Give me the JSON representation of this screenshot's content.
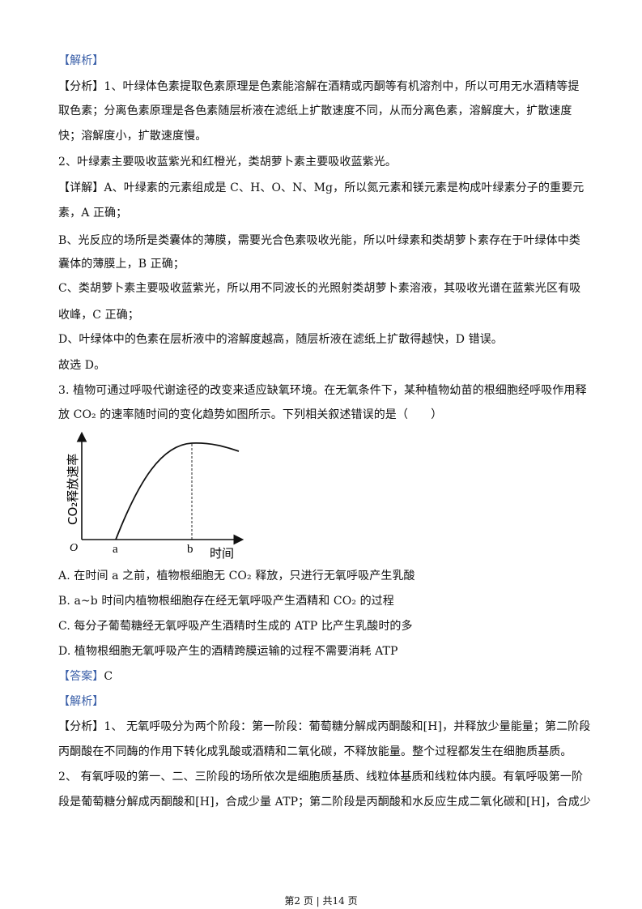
{
  "section1": {
    "jiexi_tag": "【解析】",
    "lines": [
      "【分析】1、叶绿体色素提取色素原理是色素能溶解在酒精或丙酮等有机溶剂中，所以可用无水酒精等提",
      "取色素；分离色素原理是各色素随层析液在滤纸上扩散速度不同，从而分离色素，溶解度大，扩散速度",
      "快；溶解度小，扩散速度慢。",
      "2、叶绿素主要吸收蓝紫光和红橙光，类胡萝卜素主要吸收蓝紫光。",
      "【详解】A、叶绿素的元素组成是 C、H、O、N、Mg，所以氮元素和镁元素是构成叶绿素分子的重要元",
      "素，A 正确；",
      "B、光反应的场所是类囊体的薄膜，需要光合色素吸收光能，所以叶绿素和类胡萝卜素存在于叶绿体中类",
      "囊体的薄膜上，B 正确；",
      "C、类胡萝卜素主要吸收蓝紫光，所以用不同波长的光照射类胡萝卜素溶液，其吸收光谱在蓝紫光区有吸",
      "收峰，C 正确；",
      "D、叶绿体中的色素在层析液中的溶解度越高，随层析液在滤纸上扩散得越快，D 错误。",
      "故选 D。"
    ]
  },
  "question3": {
    "stem": [
      "3. 植物可通过呼吸代谢途径的改变来适应缺氧环境。在无氧条件下，某种植物幼苗的根细胞经呼吸作用释",
      "放 CO₂ 的速率随时间的变化趋势如图所示。下列相关叙述错误的是（　　）"
    ],
    "figure": {
      "y_label": "CO₂释放速率",
      "origin_label": "O",
      "x_label": "时间",
      "point_a": "a",
      "point_b": "b"
    },
    "options": [
      "A. 在时间 a 之前，植物根细胞无 CO₂ 释放，只进行无氧呼吸产生乳酸",
      "B. a~b 时间内植物根细胞存在经无氧呼吸产生酒精和 CO₂ 的过程",
      "C. 每分子葡萄糖经无氧呼吸产生酒精时生成的 ATP 比产生乳酸时的多",
      "D. 植物根细胞无氧呼吸产生的酒精跨膜运输的过程不需要消耗 ATP"
    ],
    "answer_tag": "【答案】",
    "answer": "C",
    "jiexi_tag": "【解析】",
    "analysis": [
      "【分析】1、 无氧呼吸分为两个阶段：第一阶段：葡萄糖分解成丙酮酸和[H]，并释放少量能量；第二阶段",
      "丙酮酸在不同酶的作用下转化成乳酸或酒精和二氧化碳，不释放能量。整个过程都发生在细胞质基质。",
      "2、 有氧呼吸的第一、二、三阶段的场所依次是细胞质基质、线粒体基质和线粒体内膜。有氧呼吸第一阶",
      "段是葡萄糖分解成丙酮酸和[H]，合成少量 ATP；第二阶段是丙酮酸和水反应生成二氧化碳和[H]，合成少"
    ]
  },
  "footer": "第2 页  |  共14 页",
  "colors": {
    "tag": "#3a5fa8",
    "text": "#111111"
  }
}
